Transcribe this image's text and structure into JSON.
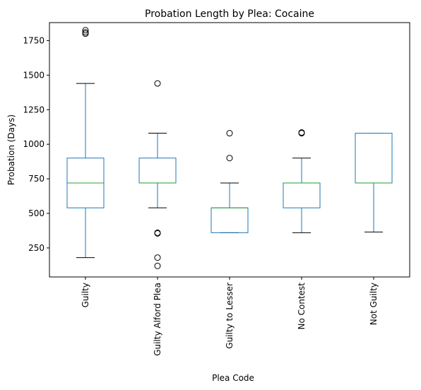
{
  "chart_data": {
    "type": "box",
    "title": "Probation Length by Plea: Cocaine",
    "xlabel": "Plea Code",
    "ylabel": "Probation (Days)",
    "categories": [
      "Guilty",
      "Guilty Alford Plea",
      "Guilty to Lesser",
      "No Contest",
      "Not Guilty"
    ],
    "yticks": [
      250,
      500,
      750,
      1000,
      1250,
      1500,
      1750
    ],
    "ylim": [
      40,
      1880
    ],
    "grid": false,
    "colors": {
      "box": "#1f77b4",
      "median": "#2ca02c",
      "whisker_cap": "#000000",
      "flier": "#000000"
    },
    "boxes": [
      {
        "category": "Guilty",
        "whisker_low": 180,
        "q1": 540,
        "median": 720,
        "q3": 900,
        "whisker_high": 1440,
        "outliers": [
          1800,
          1810,
          1825
        ]
      },
      {
        "category": "Guilty Alford Plea",
        "whisker_low": 540,
        "q1": 720,
        "median": 720,
        "q3": 900,
        "whisker_high": 1080,
        "outliers": [
          1440,
          360,
          355,
          180,
          120
        ]
      },
      {
        "category": "Guilty to Lesser",
        "whisker_low": 360,
        "q1": 360,
        "median": 540,
        "q3": 540,
        "whisker_high": 720,
        "outliers": [
          1080,
          900
        ]
      },
      {
        "category": "No Contest",
        "whisker_low": 360,
        "q1": 540,
        "median": 720,
        "q3": 720,
        "whisker_high": 900,
        "outliers": [
          1080,
          1085
        ]
      },
      {
        "category": "Not Guilty",
        "whisker_low": 365,
        "q1": 720,
        "median": 720,
        "q3": 1080,
        "whisker_high": 1080,
        "outliers": []
      }
    ]
  }
}
